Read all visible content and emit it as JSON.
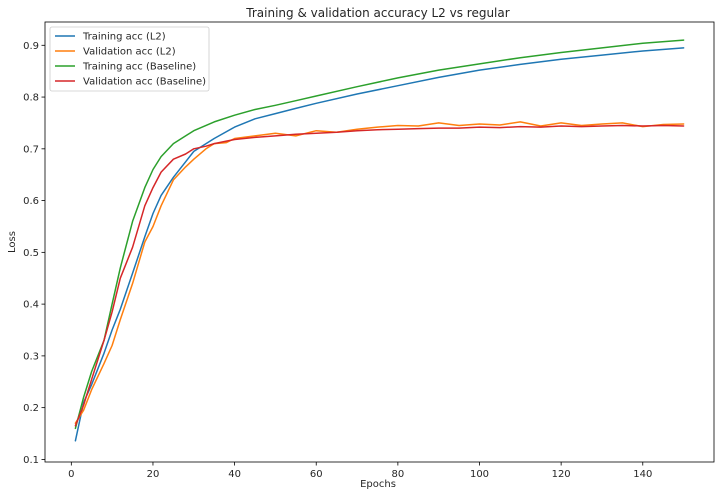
{
  "chart_data": {
    "type": "line",
    "title": "Training & validation accuracy L2 vs regular",
    "xlabel": "Epochs",
    "ylabel": "Loss",
    "xlim": [
      -6.45,
      157.45
    ],
    "ylim": [
      0.095,
      0.945
    ],
    "xticks": [
      0,
      20,
      40,
      60,
      80,
      100,
      120,
      140
    ],
    "yticks": [
      0.1,
      0.2,
      0.3,
      0.4,
      0.5,
      0.6,
      0.7,
      0.8,
      0.9
    ],
    "ytick_labels": [
      "0.1",
      "0.2",
      "0.3",
      "0.4",
      "0.5",
      "0.6",
      "0.7",
      "0.8",
      "0.9"
    ],
    "legend_position": "upper-left",
    "grid": false,
    "series": [
      {
        "name": "Training acc (L2)",
        "color": "#1f77b4",
        "x": [
          1,
          3,
          5,
          8,
          10,
          12,
          15,
          18,
          20,
          22,
          25,
          28,
          30,
          35,
          40,
          45,
          50,
          55,
          60,
          70,
          80,
          90,
          100,
          110,
          120,
          130,
          140,
          150
        ],
        "y": [
          0.136,
          0.21,
          0.245,
          0.305,
          0.35,
          0.39,
          0.46,
          0.53,
          0.575,
          0.61,
          0.645,
          0.675,
          0.695,
          0.72,
          0.742,
          0.758,
          0.768,
          0.778,
          0.788,
          0.806,
          0.822,
          0.838,
          0.852,
          0.863,
          0.873,
          0.881,
          0.889,
          0.895
        ]
      },
      {
        "name": "Validation acc (L2)",
        "color": "#ff7f0e",
        "x": [
          1,
          3,
          5,
          8,
          10,
          12,
          15,
          18,
          20,
          22,
          25,
          28,
          30,
          33,
          35,
          38,
          40,
          45,
          50,
          55,
          60,
          65,
          70,
          75,
          80,
          85,
          90,
          95,
          100,
          105,
          110,
          115,
          120,
          125,
          130,
          135,
          140,
          145,
          150
        ],
        "y": [
          0.17,
          0.195,
          0.235,
          0.285,
          0.32,
          0.37,
          0.44,
          0.52,
          0.55,
          0.59,
          0.64,
          0.665,
          0.68,
          0.7,
          0.71,
          0.712,
          0.72,
          0.725,
          0.73,
          0.725,
          0.735,
          0.732,
          0.738,
          0.742,
          0.745,
          0.744,
          0.75,
          0.745,
          0.748,
          0.746,
          0.752,
          0.744,
          0.75,
          0.745,
          0.748,
          0.75,
          0.743,
          0.747,
          0.748
        ]
      },
      {
        "name": "Training acc (Baseline)",
        "color": "#2ca02c",
        "x": [
          1,
          3,
          5,
          8,
          10,
          12,
          15,
          18,
          20,
          22,
          25,
          28,
          30,
          35,
          40,
          45,
          50,
          55,
          60,
          70,
          80,
          90,
          100,
          110,
          120,
          130,
          140,
          150
        ],
        "y": [
          0.16,
          0.22,
          0.27,
          0.33,
          0.4,
          0.47,
          0.56,
          0.625,
          0.66,
          0.685,
          0.71,
          0.725,
          0.735,
          0.752,
          0.765,
          0.776,
          0.784,
          0.793,
          0.802,
          0.82,
          0.837,
          0.852,
          0.864,
          0.876,
          0.886,
          0.895,
          0.904,
          0.91
        ]
      },
      {
        "name": "Validation acc (Baseline)",
        "color": "#d62728",
        "x": [
          1,
          3,
          5,
          8,
          10,
          12,
          15,
          18,
          20,
          22,
          25,
          28,
          30,
          33,
          35,
          38,
          40,
          45,
          50,
          55,
          60,
          65,
          70,
          75,
          80,
          85,
          90,
          95,
          100,
          105,
          110,
          115,
          120,
          125,
          130,
          135,
          140,
          145,
          150
        ],
        "y": [
          0.165,
          0.205,
          0.255,
          0.33,
          0.385,
          0.45,
          0.51,
          0.59,
          0.625,
          0.655,
          0.68,
          0.69,
          0.7,
          0.705,
          0.71,
          0.715,
          0.718,
          0.722,
          0.725,
          0.728,
          0.73,
          0.732,
          0.735,
          0.737,
          0.738,
          0.739,
          0.74,
          0.74,
          0.742,
          0.741,
          0.743,
          0.742,
          0.744,
          0.743,
          0.744,
          0.745,
          0.744,
          0.745,
          0.744
        ]
      }
    ]
  }
}
